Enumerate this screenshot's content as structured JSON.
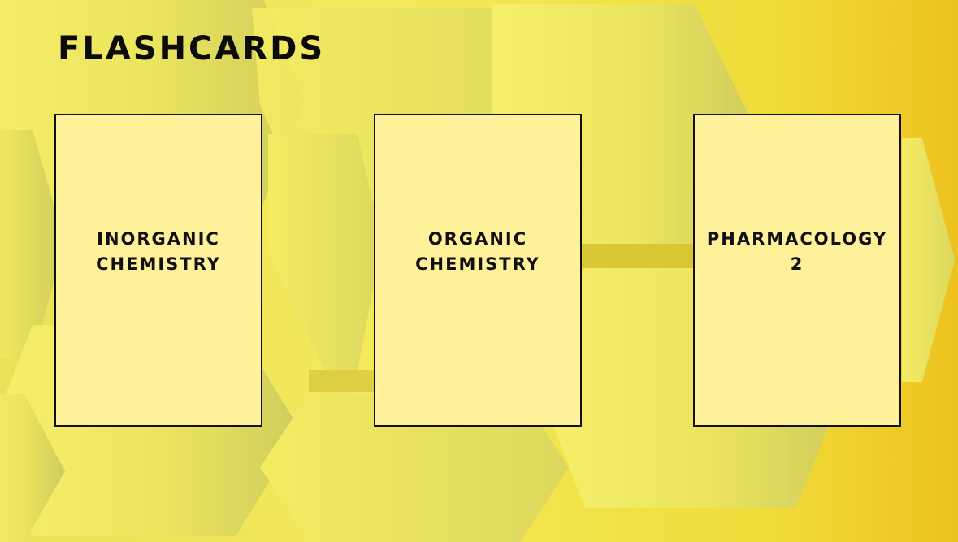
{
  "slide": {
    "title": "FLASHCARDS",
    "cards": [
      {
        "label": "INORGANIC\nCHEMISTRY"
      },
      {
        "label": "ORGANIC\nCHEMISTRY"
      },
      {
        "label": "PHARMACOLOGY\n2"
      }
    ]
  },
  "colors": {
    "background_yellow": "#f3ea5a",
    "background_gold": "#eec21e",
    "card_fill": "#fff09a",
    "card_border": "#111111",
    "text": "#0b0b0b"
  }
}
